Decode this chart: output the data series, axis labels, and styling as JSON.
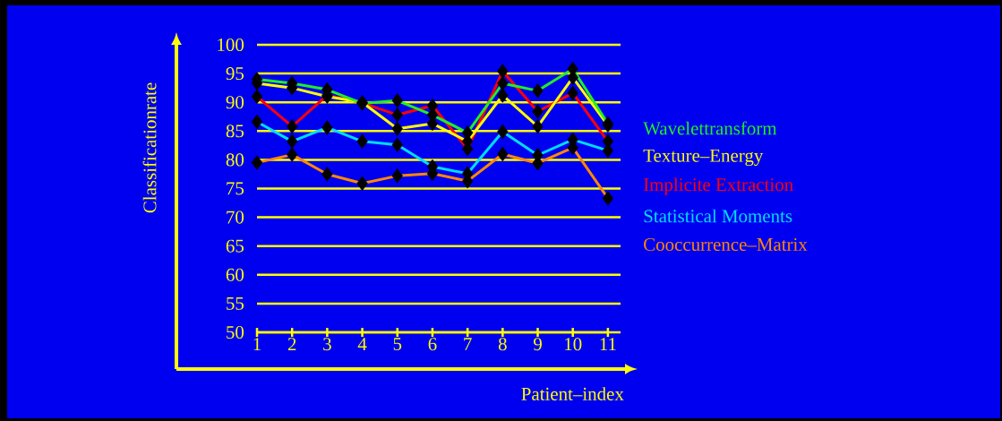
{
  "chart_data": {
    "type": "line",
    "xlabel": "Patient–index",
    "ylabel": "Classificationrate",
    "x": [
      1,
      2,
      3,
      4,
      5,
      6,
      7,
      8,
      9,
      10,
      11
    ],
    "xlim": [
      1,
      11.36
    ],
    "xticks": [
      1,
      2,
      3,
      4,
      5,
      6,
      7,
      8,
      9,
      10,
      11
    ],
    "ylim": [
      50,
      100
    ],
    "yticks": [
      50,
      55,
      60,
      65,
      70,
      75,
      80,
      85,
      90,
      95,
      100
    ],
    "grid": "y",
    "legend": "right",
    "marker": "diamond",
    "line_style": "solid",
    "series": [
      {
        "name": "Wavelettransform",
        "color": "#22ee22",
        "values": [
          94.0,
          93.3,
          92.2,
          89.8,
          90.3,
          87.8,
          84.7,
          93.3,
          92.0,
          95.8,
          86.3
        ]
      },
      {
        "name": "Texture–Energy",
        "color": "#ffff00",
        "values": [
          93.3,
          92.5,
          91.0,
          90.0,
          85.4,
          86.3,
          83.2,
          91.2,
          85.8,
          94.3,
          86.0
        ]
      },
      {
        "name": "Implicite Extraction",
        "color": "#ff0000",
        "values": [
          91.0,
          85.8,
          91.2,
          89.9,
          87.8,
          89.4,
          81.9,
          95.4,
          88.4,
          91.6,
          83.2
        ]
      },
      {
        "name": "Statistical Moments",
        "color": "#00ddff",
        "values": [
          86.6,
          83.2,
          85.6,
          83.2,
          82.6,
          78.8,
          77.6,
          84.9,
          80.8,
          83.5,
          81.6
        ]
      },
      {
        "name": "Cooccurrence–Matrix",
        "color": "#ff8800",
        "values": [
          79.5,
          80.9,
          77.5,
          75.9,
          77.2,
          77.6,
          76.3,
          81.0,
          79.4,
          82.1,
          73.3
        ]
      }
    ]
  }
}
